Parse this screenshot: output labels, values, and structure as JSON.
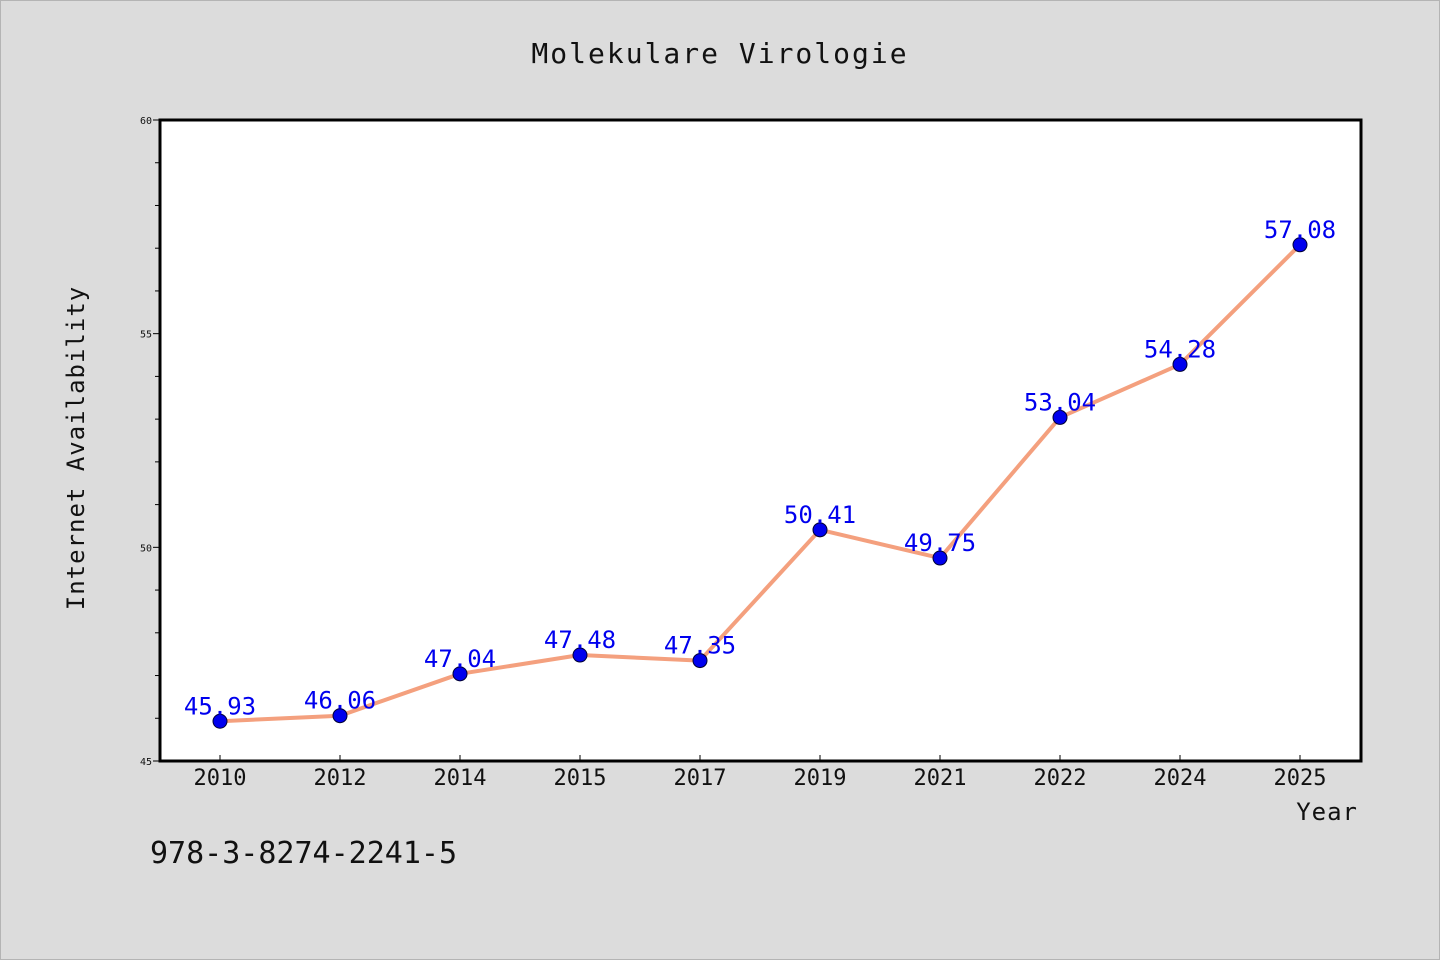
{
  "chart_data": {
    "type": "line",
    "title": "Molekulare Virologie",
    "xlabel": "Year",
    "ylabel": "Internet Availability",
    "categories": [
      "2010",
      "2012",
      "2014",
      "2015",
      "2017",
      "2019",
      "2021",
      "2022",
      "2024",
      "2025"
    ],
    "series": [
      {
        "values": [
          45.93,
          46.06,
          47.04,
          47.48,
          47.35,
          50.41,
          49.75,
          53.04,
          54.28,
          57.08
        ],
        "data_labels": [
          "45.93",
          "46.06",
          "47.04",
          "47.48",
          "47.35",
          "50.41",
          "49.75",
          "53.04",
          "54.28",
          "57.08"
        ],
        "line_color": "#f4a07e",
        "marker_color": "#0000ee"
      }
    ],
    "ylim": [
      45,
      60
    ],
    "yticks_major": [
      45,
      50,
      55,
      60
    ],
    "ytick_labels": [
      "45",
      "50",
      "55",
      "60"
    ],
    "yticks_minor_step": 1,
    "grid": false,
    "legend": "none"
  },
  "footnote": "978-3-8274-2241-5",
  "colors": {
    "background": "#dcdcdc",
    "plot_background": "#ffffff",
    "line": "#f4a07e",
    "marker": "#0000ee",
    "data_label": "#0000ee"
  }
}
